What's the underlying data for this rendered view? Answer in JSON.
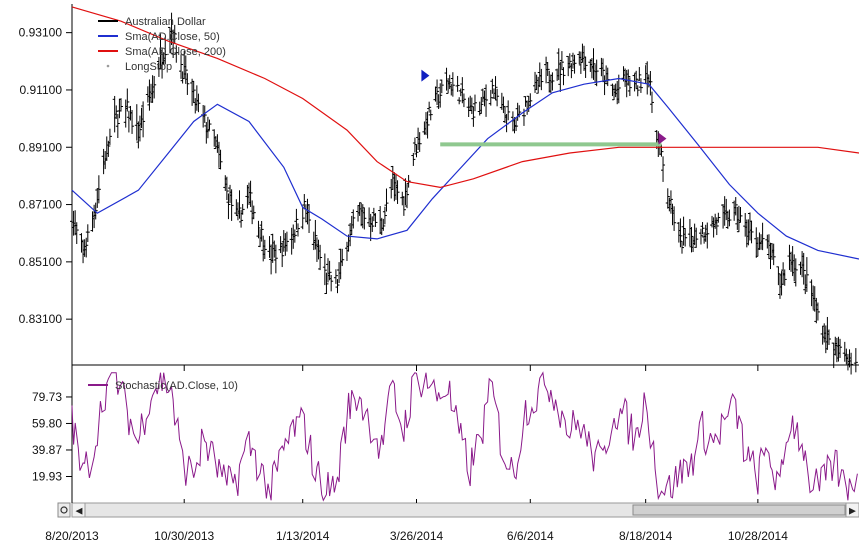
{
  "chart_data": [
    {
      "type": "ohlc",
      "ylim": [
        0.815,
        0.941
      ],
      "xlim": [
        "2013-08-20",
        "2014-12-31"
      ],
      "y_ticks": [
        "0.83100",
        "0.85100",
        "0.87100",
        "0.89100",
        "0.91100",
        "0.93100"
      ],
      "x_ticks": [
        {
          "date": "2013-08-20",
          "label": "8/20/2013"
        },
        {
          "date": "2013-10-30",
          "label": "10/30/2013"
        },
        {
          "date": "2014-01-13",
          "label": "1/13/2014"
        },
        {
          "date": "2014-03-26",
          "label": "3/26/2014"
        },
        {
          "date": "2014-06-06",
          "label": "6/6/2014"
        },
        {
          "date": "2014-08-18",
          "label": "8/18/2014"
        },
        {
          "date": "2014-10-28",
          "label": "10/28/2014"
        }
      ],
      "legend_placement": "top-left",
      "series": [
        {
          "name": "Australian Dollar",
          "kind": "ohlc-bars",
          "color": "#000000",
          "dates": [
            "2013-08-20",
            "2013-08-27",
            "2013-09-03",
            "2013-09-10",
            "2013-09-17",
            "2013-09-24",
            "2013-10-01",
            "2013-10-08",
            "2013-10-15",
            "2013-10-22",
            "2013-10-29",
            "2013-11-05",
            "2013-11-12",
            "2013-11-19",
            "2013-11-26",
            "2013-12-03",
            "2013-12-10",
            "2013-12-17",
            "2013-12-24",
            "2013-12-31",
            "2014-01-07",
            "2014-01-14",
            "2014-01-21",
            "2014-01-28",
            "2014-02-04",
            "2014-02-11",
            "2014-02-18",
            "2014-02-25",
            "2014-03-04",
            "2014-03-11",
            "2014-03-18",
            "2014-03-25",
            "2014-04-01",
            "2014-04-08",
            "2014-04-15",
            "2014-04-22",
            "2014-04-29",
            "2014-05-06",
            "2014-05-13",
            "2014-05-20",
            "2014-05-27",
            "2014-06-03",
            "2014-06-10",
            "2014-06-17",
            "2014-06-24",
            "2014-07-01",
            "2014-07-08",
            "2014-07-15",
            "2014-07-22",
            "2014-07-29",
            "2014-08-05",
            "2014-08-12",
            "2014-08-19",
            "2014-08-26",
            "2014-09-02",
            "2014-09-09",
            "2014-09-16",
            "2014-09-23",
            "2014-09-30",
            "2014-10-07",
            "2014-10-14",
            "2014-10-21",
            "2014-10-28",
            "2014-11-04",
            "2014-11-11",
            "2014-11-18",
            "2014-11-25",
            "2014-12-02",
            "2014-12-09",
            "2014-12-16",
            "2014-12-23",
            "2014-12-30"
          ],
          "close": [
            0.866,
            0.854,
            0.868,
            0.888,
            0.902,
            0.904,
            0.896,
            0.908,
            0.922,
            0.932,
            0.918,
            0.908,
            0.9,
            0.892,
            0.875,
            0.866,
            0.874,
            0.862,
            0.853,
            0.856,
            0.861,
            0.87,
            0.858,
            0.845,
            0.844,
            0.86,
            0.868,
            0.866,
            0.864,
            0.878,
            0.872,
            0.89,
            0.9,
            0.908,
            0.914,
            0.91,
            0.904,
            0.905,
            0.912,
            0.903,
            0.898,
            0.906,
            0.912,
            0.916,
            0.918,
            0.92,
            0.924,
            0.92,
            0.916,
            0.91,
            0.914,
            0.912,
            0.918,
            0.893,
            0.872,
            0.858,
            0.86,
            0.862,
            0.864,
            0.866,
            0.868,
            0.862,
            0.858,
            0.856,
            0.843,
            0.852,
            0.848,
            0.838,
            0.826,
            0.82,
            0.818,
            0.816
          ],
          "high": [
            0.872,
            0.86,
            0.874,
            0.893,
            0.91,
            0.912,
            0.904,
            0.915,
            0.93,
            0.94,
            0.925,
            0.914,
            0.906,
            0.897,
            0.882,
            0.873,
            0.88,
            0.868,
            0.86,
            0.862,
            0.868,
            0.876,
            0.864,
            0.851,
            0.85,
            0.866,
            0.874,
            0.872,
            0.87,
            0.884,
            0.878,
            0.896,
            0.906,
            0.912,
            0.918,
            0.914,
            0.909,
            0.911,
            0.916,
            0.907,
            0.903,
            0.911,
            0.916,
            0.922,
            0.926,
            0.924,
            0.928,
            0.925,
            0.92,
            0.915,
            0.919,
            0.916,
            0.922,
            0.9,
            0.878,
            0.864,
            0.866,
            0.868,
            0.87,
            0.872,
            0.876,
            0.868,
            0.864,
            0.862,
            0.85,
            0.858,
            0.854,
            0.845,
            0.832,
            0.826,
            0.824,
            0.822
          ],
          "low": [
            0.856,
            0.848,
            0.86,
            0.88,
            0.895,
            0.897,
            0.89,
            0.9,
            0.915,
            0.922,
            0.91,
            0.901,
            0.893,
            0.885,
            0.868,
            0.859,
            0.867,
            0.854,
            0.847,
            0.849,
            0.854,
            0.862,
            0.85,
            0.838,
            0.836,
            0.852,
            0.86,
            0.859,
            0.857,
            0.87,
            0.865,
            0.882,
            0.892,
            0.9,
            0.906,
            0.904,
            0.897,
            0.898,
            0.904,
            0.897,
            0.892,
            0.899,
            0.905,
            0.909,
            0.911,
            0.913,
            0.916,
            0.912,
            0.909,
            0.903,
            0.906,
            0.905,
            0.908,
            0.885,
            0.865,
            0.85,
            0.852,
            0.856,
            0.857,
            0.858,
            0.86,
            0.854,
            0.85,
            0.848,
            0.836,
            0.844,
            0.84,
            0.83,
            0.818,
            0.812,
            0.812,
            0.81
          ]
        },
        {
          "name": "Sma(AD.Close, 50)",
          "kind": "line",
          "color": "#1f2fd0",
          "x": [
            "2013-08-20",
            "2013-09-05",
            "2013-10-01",
            "2013-10-20",
            "2013-11-05",
            "2013-11-20",
            "2013-12-10",
            "2014-01-01",
            "2014-01-13",
            "2014-01-25",
            "2014-02-10",
            "2014-03-01",
            "2014-03-20",
            "2014-04-05",
            "2014-04-20",
            "2014-05-10",
            "2014-06-01",
            "2014-06-20",
            "2014-07-10",
            "2014-08-01",
            "2014-08-20",
            "2014-09-01",
            "2014-09-20",
            "2014-10-10",
            "2014-10-28",
            "2014-11-15",
            "2014-12-05",
            "2014-12-31"
          ],
          "y": [
            0.876,
            0.868,
            0.876,
            0.889,
            0.9,
            0.906,
            0.9,
            0.884,
            0.87,
            0.866,
            0.86,
            0.859,
            0.862,
            0.873,
            0.882,
            0.894,
            0.903,
            0.91,
            0.913,
            0.915,
            0.913,
            0.905,
            0.892,
            0.878,
            0.868,
            0.86,
            0.855,
            0.852
          ]
        },
        {
          "name": "Sma(AD.Close, 200)",
          "kind": "line",
          "color": "#e01010",
          "x": [
            "2013-08-20",
            "2013-09-20",
            "2013-10-20",
            "2013-11-20",
            "2013-12-20",
            "2014-01-13",
            "2014-02-10",
            "2014-03-01",
            "2014-03-20",
            "2014-04-10",
            "2014-05-01",
            "2014-06-01",
            "2014-07-01",
            "2014-08-01",
            "2014-08-18",
            "2014-09-10",
            "2014-10-10",
            "2014-11-10",
            "2014-12-05",
            "2014-12-31"
          ],
          "y": [
            0.94,
            0.935,
            0.928,
            0.922,
            0.915,
            0.908,
            0.897,
            0.886,
            0.879,
            0.877,
            0.88,
            0.886,
            0.889,
            0.891,
            0.891,
            0.891,
            0.891,
            0.891,
            0.891,
            0.889
          ]
        },
        {
          "name": "LongStop",
          "kind": "segment",
          "color": "#8fc88f",
          "x": [
            "2014-04-10",
            "2014-08-28"
          ],
          "y": [
            0.892,
            0.892
          ]
        }
      ],
      "markers": [
        {
          "date": "2014-03-31",
          "price": 0.916,
          "shape": "triangle",
          "color": "#1020c0"
        },
        {
          "date": "2014-08-28",
          "price": 0.894,
          "shape": "triangle",
          "color": "#8a1a8a"
        }
      ]
    },
    {
      "type": "line",
      "ylim": [
        0,
        100
      ],
      "y_ticks": [
        "19.93",
        "39.87",
        "59.80",
        "79.73"
      ],
      "legend_placement": "top-left",
      "series": [
        {
          "name": "Stochastic(AD.Close, 10)",
          "color": "#8a1a8a",
          "x": [
            "2013-08-20",
            "2013-08-27",
            "2013-09-03",
            "2013-09-10",
            "2013-09-17",
            "2013-09-24",
            "2013-10-01",
            "2013-10-08",
            "2013-10-15",
            "2013-10-22",
            "2013-10-29",
            "2013-11-05",
            "2013-11-12",
            "2013-11-19",
            "2013-11-26",
            "2013-12-03",
            "2013-12-10",
            "2013-12-17",
            "2013-12-24",
            "2013-12-31",
            "2014-01-07",
            "2014-01-14",
            "2014-01-21",
            "2014-01-28",
            "2014-02-04",
            "2014-02-11",
            "2014-02-18",
            "2014-02-25",
            "2014-03-04",
            "2014-03-11",
            "2014-03-18",
            "2014-03-25",
            "2014-04-01",
            "2014-04-08",
            "2014-04-15",
            "2014-04-22",
            "2014-04-29",
            "2014-05-06",
            "2014-05-13",
            "2014-05-20",
            "2014-05-27",
            "2014-06-03",
            "2014-06-10",
            "2014-06-17",
            "2014-06-24",
            "2014-07-01",
            "2014-07-08",
            "2014-07-15",
            "2014-07-22",
            "2014-07-29",
            "2014-08-05",
            "2014-08-12",
            "2014-08-19",
            "2014-08-26",
            "2014-09-02",
            "2014-09-09",
            "2014-09-16",
            "2014-09-23",
            "2014-09-30",
            "2014-10-07",
            "2014-10-14",
            "2014-10-21",
            "2014-10-28",
            "2014-11-04",
            "2014-11-11",
            "2014-11-18",
            "2014-11-25",
            "2014-12-02",
            "2014-12-09",
            "2014-12-16",
            "2014-12-23",
            "2014-12-30"
          ],
          "y": [
            65,
            20,
            40,
            85,
            95,
            70,
            45,
            80,
            92,
            88,
            30,
            22,
            48,
            30,
            12,
            20,
            45,
            28,
            8,
            35,
            55,
            60,
            25,
            10,
            15,
            70,
            82,
            60,
            40,
            85,
            55,
            90,
            95,
            80,
            88,
            52,
            25,
            50,
            86,
            40,
            20,
            70,
            80,
            92,
            75,
            55,
            60,
            38,
            30,
            70,
            65,
            48,
            80,
            15,
            10,
            22,
            30,
            55,
            45,
            60,
            72,
            35,
            20,
            40,
            8,
            65,
            48,
            10,
            15,
            30,
            12,
            22
          ]
        }
      ]
    }
  ]
}
